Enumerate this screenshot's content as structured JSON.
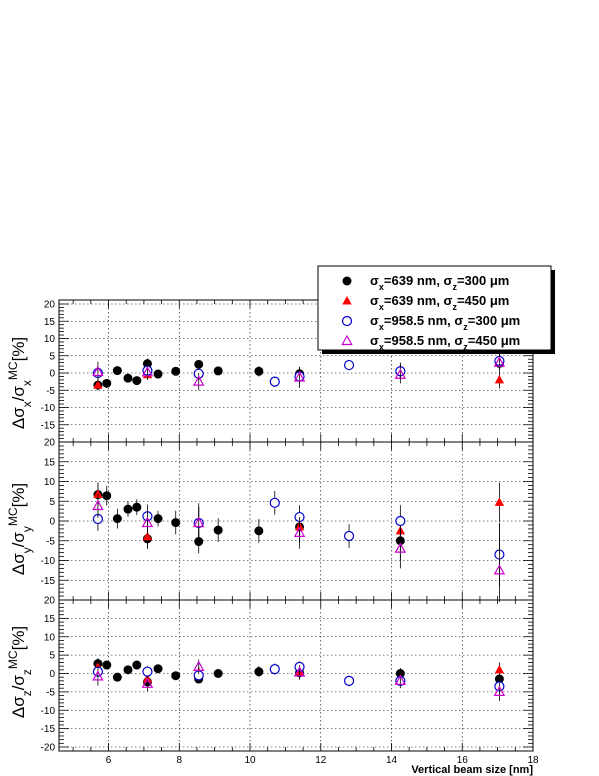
{
  "chart_data": {
    "type": "scatter",
    "xlabel": "Vertical beam size [nm]",
    "xlim": [
      4.6,
      18.0
    ],
    "x_ticks": [
      6,
      8,
      10,
      12,
      14,
      16,
      18
    ],
    "grid": true,
    "legend": {
      "placement": "top-right",
      "entries": [
        {
          "key": "a",
          "marker": "filled-circle",
          "color": "#000000",
          "parts": [
            {
              "t": "σ",
              "s": "n"
            },
            {
              "t": "x",
              "s": "sub"
            },
            {
              "t": "=639 nm, ",
              "s": "n"
            },
            {
              "t": "σ",
              "s": "n"
            },
            {
              "t": "z",
              "s": "sub"
            },
            {
              "t": "=300 μm",
              "s": "n"
            }
          ]
        },
        {
          "key": "b",
          "marker": "filled-triangle",
          "color": "#ff0000",
          "parts": [
            {
              "t": "σ",
              "s": "n"
            },
            {
              "t": "x",
              "s": "sub"
            },
            {
              "t": "=639 nm, ",
              "s": "n"
            },
            {
              "t": "σ",
              "s": "n"
            },
            {
              "t": "z",
              "s": "sub"
            },
            {
              "t": "=450 μm",
              "s": "n"
            }
          ]
        },
        {
          "key": "c",
          "marker": "open-circle",
          "color": "#0000cc",
          "parts": [
            {
              "t": "σ",
              "s": "n"
            },
            {
              "t": "x",
              "s": "sub"
            },
            {
              "t": "=958.5 nm, ",
              "s": "n"
            },
            {
              "t": "σ",
              "s": "n"
            },
            {
              "t": "z",
              "s": "sub"
            },
            {
              "t": "=300 μm",
              "s": "n"
            }
          ]
        },
        {
          "key": "d",
          "marker": "open-triangle",
          "color": "#cc00cc",
          "parts": [
            {
              "t": "σ",
              "s": "n"
            },
            {
              "t": "x",
              "s": "sub"
            },
            {
              "t": "=958.5 nm, ",
              "s": "n"
            },
            {
              "t": "σ",
              "s": "n"
            },
            {
              "t": "z",
              "s": "sub"
            },
            {
              "t": "=450 μm",
              "s": "n"
            }
          ]
        }
      ]
    },
    "panels": [
      {
        "id": "sx",
        "ylabel_parts": [
          {
            "t": "Δσ",
            "s": "n"
          },
          {
            "t": "x",
            "s": "sub"
          },
          {
            "t": "/σ",
            "s": "n"
          },
          {
            "t": "x",
            "s": "sub"
          },
          {
            "t": "MC",
            "s": "sup"
          },
          {
            "t": "[%]",
            "s": "n"
          }
        ],
        "ylim": [
          -20,
          20
        ],
        "y_ticks": [
          20,
          15,
          10,
          5,
          0,
          -5,
          -10,
          -15
        ],
        "series": {
          "a": [
            [
              5.7,
              -3.5,
              1.5
            ],
            [
              5.95,
              -3,
              1
            ],
            [
              6.25,
              0.7,
              1
            ],
            [
              6.55,
              -1.5,
              1
            ],
            [
              6.8,
              -2.2,
              1
            ],
            [
              7.1,
              2.7,
              1.5
            ],
            [
              7.4,
              -0.3,
              1
            ],
            [
              7.9,
              0.5,
              1
            ],
            [
              8.55,
              2.5,
              1
            ],
            [
              9.1,
              0.6,
              1
            ],
            [
              10.25,
              0.5,
              1.5
            ],
            [
              11.4,
              -0.2,
              2
            ],
            [
              14.25,
              0.5,
              2.5
            ],
            [
              17.05,
              2.8,
              2
            ]
          ],
          "b": [
            [
              5.7,
              -3.5,
              1.5
            ],
            [
              7.1,
              -0.5,
              1.5
            ],
            [
              8.55,
              -0.2,
              2
            ],
            [
              11.4,
              -0.5,
              2
            ],
            [
              14.25,
              0.7,
              2
            ],
            [
              17.05,
              -2,
              2.5
            ]
          ],
          "c": [
            [
              5.7,
              0,
              2
            ],
            [
              7.1,
              0.7,
              1.5
            ],
            [
              8.55,
              -0.2,
              1.5
            ],
            [
              10.7,
              -2.5,
              1.5
            ],
            [
              11.4,
              -1,
              2
            ],
            [
              12.8,
              2.3,
              1.5
            ],
            [
              14.25,
              0.5,
              2
            ],
            [
              17.05,
              3.5,
              2.5
            ]
          ],
          "d": [
            [
              5.7,
              0.3,
              3
            ],
            [
              7.1,
              0.2,
              2
            ],
            [
              8.55,
              -2.5,
              2.5
            ],
            [
              11.4,
              -1.3,
              3
            ],
            [
              14.25,
              -0.5,
              2.5
            ],
            [
              17.05,
              3,
              2.5
            ]
          ]
        }
      },
      {
        "id": "sy",
        "ylabel_parts": [
          {
            "t": "Δσ",
            "s": "n"
          },
          {
            "t": "y",
            "s": "sub"
          },
          {
            "t": "/σ",
            "s": "n"
          },
          {
            "t": "y",
            "s": "sub"
          },
          {
            "t": "MC",
            "s": "sup"
          },
          {
            "t": "[%]",
            "s": "n"
          }
        ],
        "ylim": [
          -20,
          20
        ],
        "y_ticks": [
          20,
          15,
          10,
          5,
          0,
          -5,
          -10,
          -15
        ],
        "series": {
          "a": [
            [
              5.7,
              6.7,
              3
            ],
            [
              5.95,
              6.4,
              2.5
            ],
            [
              6.25,
              0.6,
              2.5
            ],
            [
              6.55,
              3,
              2
            ],
            [
              6.8,
              3.5,
              2
            ],
            [
              7.1,
              -4.5,
              2.5
            ],
            [
              7.4,
              0.6,
              2
            ],
            [
              7.9,
              -0.4,
              3
            ],
            [
              8.55,
              -5.2,
              3
            ],
            [
              9.1,
              -2.3,
              3
            ],
            [
              10.25,
              -2.5,
              3
            ],
            [
              11.4,
              -1.5,
              3
            ],
            [
              14.25,
              -5,
              5
            ],
            [
              17.05,
              -8.5,
              8
            ]
          ],
          "b": [
            [
              5.7,
              6.7,
              3
            ],
            [
              7.1,
              -4,
              3
            ],
            [
              8.55,
              -0.5,
              4
            ],
            [
              11.4,
              -1.5,
              4
            ],
            [
              14.25,
              -2.5,
              4
            ],
            [
              17.05,
              4.7,
              5
            ]
          ],
          "c": [
            [
              5.7,
              0.5,
              3
            ],
            [
              7.1,
              1.2,
              3
            ],
            [
              8.55,
              -0.5,
              4
            ],
            [
              10.7,
              4.6,
              3
            ],
            [
              11.4,
              1,
              3
            ],
            [
              12.8,
              -3.8,
              3
            ],
            [
              14.25,
              0,
              4
            ],
            [
              17.05,
              -8.5,
              8
            ]
          ],
          "d": [
            [
              5.7,
              3.8,
              3
            ],
            [
              7.1,
              -0.5,
              3
            ],
            [
              8.55,
              -0.5,
              5
            ],
            [
              11.4,
              -3,
              4
            ],
            [
              14.25,
              -7,
              5
            ],
            [
              17.05,
              -12.5,
              8
            ]
          ]
        }
      },
      {
        "id": "sz",
        "ylabel_parts": [
          {
            "t": "Δσ",
            "s": "n"
          },
          {
            "t": "z",
            "s": "sub"
          },
          {
            "t": "/σ",
            "s": "n"
          },
          {
            "t": "z",
            "s": "sub"
          },
          {
            "t": "MC",
            "s": "sup"
          },
          {
            "t": "[%]",
            "s": "n"
          }
        ],
        "ylim": [
          -20,
          20
        ],
        "y_ticks": [
          20,
          15,
          10,
          5,
          0,
          -5,
          -10,
          -15,
          -20
        ],
        "series": {
          "a": [
            [
              5.7,
              2.7,
              1.5
            ],
            [
              5.95,
              2.3,
              1
            ],
            [
              6.25,
              -1,
              1
            ],
            [
              6.55,
              1,
              1
            ],
            [
              6.8,
              2.3,
              1
            ],
            [
              7.1,
              -2.3,
              1.5
            ],
            [
              7.4,
              1.3,
              1
            ],
            [
              7.9,
              -0.6,
              1
            ],
            [
              8.55,
              -1.5,
              1
            ],
            [
              9.1,
              0,
              1
            ],
            [
              10.25,
              0.5,
              1.5
            ],
            [
              11.4,
              0.2,
              1.5
            ],
            [
              14.25,
              0,
              1.5
            ],
            [
              17.05,
              -1.5,
              2
            ]
          ],
          "b": [
            [
              5.7,
              1.7,
              1.5
            ],
            [
              7.1,
              -1.5,
              2
            ],
            [
              8.55,
              0.3,
              1.5
            ],
            [
              11.4,
              0.5,
              1.5
            ],
            [
              14.25,
              -1.5,
              2
            ],
            [
              17.05,
              1,
              2
            ]
          ],
          "c": [
            [
              5.7,
              0.5,
              1.5
            ],
            [
              7.1,
              0.5,
              1.5
            ],
            [
              8.55,
              -0.5,
              1.5
            ],
            [
              10.7,
              1.2,
              1.5
            ],
            [
              11.4,
              1.8,
              1.5
            ],
            [
              12.8,
              -2,
              1.5
            ],
            [
              14.25,
              -2,
              1.5
            ],
            [
              17.05,
              -3.5,
              2
            ]
          ],
          "d": [
            [
              5.7,
              -0.8,
              2.5
            ],
            [
              7.1,
              -2.8,
              2
            ],
            [
              8.55,
              1.8,
              2
            ],
            [
              11.4,
              0.3,
              2
            ],
            [
              14.25,
              -2,
              2
            ],
            [
              17.05,
              -5,
              2.5
            ]
          ]
        }
      }
    ]
  }
}
